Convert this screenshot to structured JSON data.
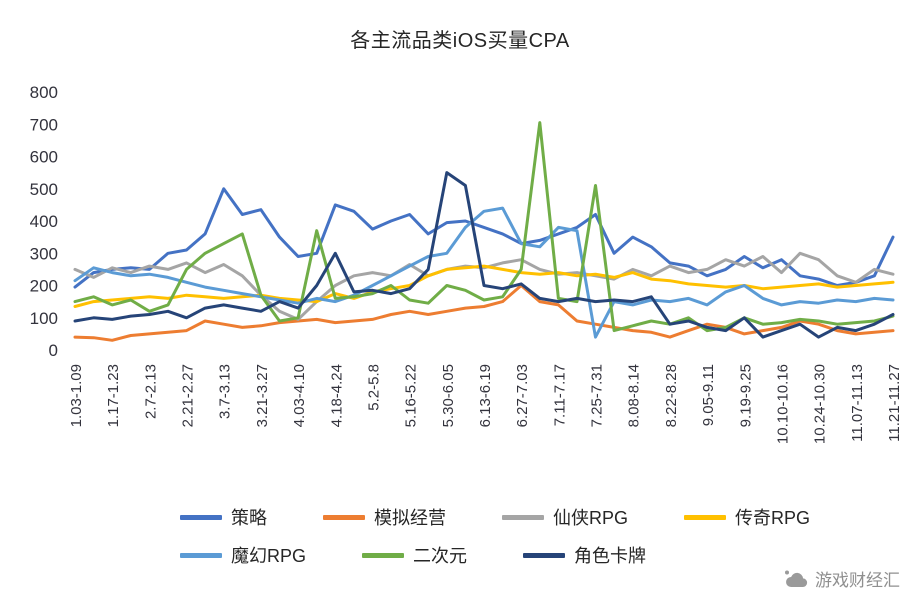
{
  "watermark": {
    "text": "游戏财经汇"
  },
  "chart_data": {
    "type": "line",
    "title": "各主流品类iOS买量CPA",
    "xlabel": "",
    "ylabel": "",
    "ylim": [
      0,
      800
    ],
    "yticks": [
      0,
      100,
      200,
      300,
      400,
      500,
      600,
      700,
      800
    ],
    "grid": false,
    "legend_position": "bottom",
    "label_every": 2,
    "x_tick_labels": [
      "1.03-1.09",
      "1.17-1.23",
      "2.7-2.13",
      "2.21-2.27",
      "3.7-3.13",
      "3.21-3.27",
      "4.03-4.10",
      "4.18-4.24",
      "5.2-5.8",
      "5.16-5.22",
      "5.30-6.05",
      "6.13-6.19",
      "6.27-7.03",
      "7.11-7.17",
      "7.25-7.31",
      "8.08-8.14",
      "8.22-8.28",
      "9.05-9.11",
      "9.19-9.25",
      "10.10-10.16",
      "10.24-10.30",
      "11.07-11.13",
      "11.21-11.27"
    ],
    "series": [
      {
        "name": "策略",
        "key": "strategy",
        "color": "#4472C4",
        "values": [
          195,
          240,
          250,
          255,
          250,
          300,
          310,
          360,
          500,
          420,
          435,
          350,
          290,
          300,
          450,
          430,
          375,
          400,
          420,
          360,
          395,
          400,
          380,
          360,
          330,
          340,
          360,
          380,
          420,
          300,
          350,
          320,
          270,
          260,
          230,
          250,
          290,
          255,
          280,
          230,
          220,
          200,
          210,
          230,
          350
        ]
      },
      {
        "name": "模拟经营",
        "key": "simulation",
        "color": "#ED7D31",
        "values": [
          40,
          38,
          30,
          45,
          50,
          55,
          60,
          90,
          80,
          70,
          75,
          85,
          90,
          95,
          85,
          90,
          95,
          110,
          120,
          110,
          120,
          130,
          135,
          150,
          200,
          150,
          140,
          90,
          80,
          70,
          60,
          55,
          40,
          60,
          80,
          70,
          50,
          60,
          70,
          90,
          80,
          60,
          50,
          55,
          60
        ]
      },
      {
        "name": "仙侠RPG",
        "key": "xianxia-rpg",
        "color": "#A5A5A5",
        "values": [
          250,
          225,
          255,
          240,
          260,
          250,
          270,
          240,
          265,
          230,
          170,
          120,
          95,
          150,
          200,
          230,
          240,
          230,
          265,
          230,
          250,
          260,
          255,
          270,
          280,
          250,
          235,
          240,
          230,
          220,
          250,
          230,
          260,
          240,
          250,
          280,
          260,
          290,
          240,
          300,
          280,
          230,
          210,
          250,
          235
        ]
      },
      {
        "name": "传奇RPG",
        "key": "legend-rpg",
        "color": "#FFC000",
        "values": [
          135,
          150,
          155,
          160,
          165,
          160,
          170,
          165,
          160,
          165,
          170,
          160,
          155,
          150,
          175,
          160,
          180,
          190,
          200,
          230,
          250,
          255,
          260,
          250,
          240,
          235,
          240,
          230,
          235,
          225,
          240,
          220,
          215,
          205,
          200,
          195,
          200,
          190,
          195,
          200,
          205,
          195,
          200,
          205,
          210
        ]
      },
      {
        "name": "魔幻RPG",
        "key": "fantasy-rpg",
        "color": "#5B9BD5",
        "values": [
          215,
          255,
          240,
          230,
          235,
          225,
          210,
          195,
          185,
          175,
          165,
          155,
          145,
          160,
          150,
          170,
          200,
          230,
          260,
          290,
          300,
          380,
          430,
          440,
          330,
          320,
          380,
          370,
          40,
          150,
          140,
          155,
          150,
          160,
          140,
          180,
          200,
          160,
          140,
          150,
          145,
          155,
          150,
          160,
          155
        ]
      },
      {
        "name": "二次元",
        "key": "anime",
        "color": "#70AD47",
        "values": [
          150,
          165,
          140,
          155,
          120,
          140,
          250,
          300,
          330,
          360,
          170,
          90,
          100,
          370,
          160,
          165,
          175,
          200,
          155,
          145,
          200,
          185,
          155,
          165,
          250,
          705,
          160,
          150,
          510,
          60,
          75,
          90,
          80,
          100,
          60,
          70,
          100,
          80,
          85,
          95,
          90,
          80,
          85,
          90,
          105
        ]
      },
      {
        "name": "角色卡牌",
        "key": "role-card",
        "color": "#264478",
        "values": [
          90,
          100,
          95,
          105,
          110,
          120,
          100,
          130,
          140,
          130,
          120,
          150,
          130,
          200,
          300,
          180,
          185,
          175,
          190,
          250,
          550,
          510,
          200,
          190,
          205,
          160,
          150,
          160,
          150,
          155,
          150,
          165,
          80,
          90,
          70,
          60,
          100,
          40,
          60,
          80,
          40,
          70,
          60,
          80,
          110
        ]
      }
    ]
  }
}
